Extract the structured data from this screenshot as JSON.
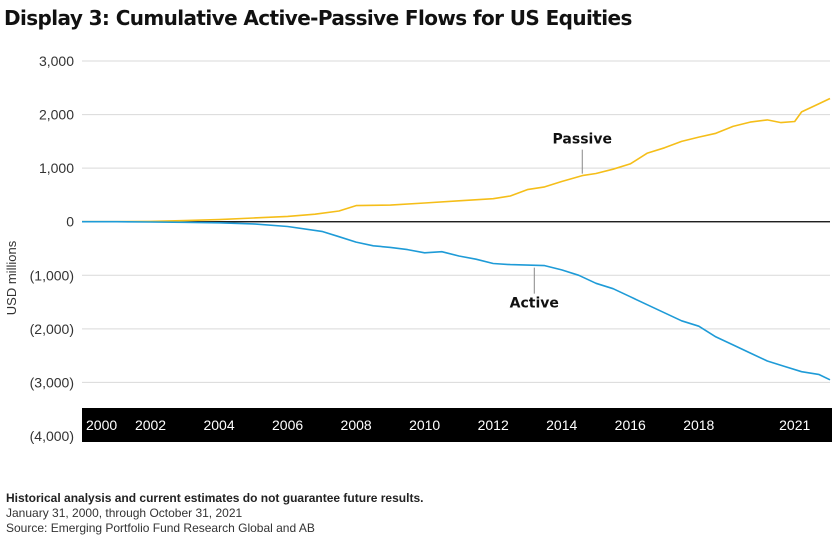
{
  "title": "Display 3: Cumulative Active-Passive Flows for US Equities",
  "footer": {
    "disclaimer": "Historical analysis and current estimates do not guarantee future results.",
    "period": "January 31, 2000, through October 31, 2021",
    "source": "Source: Emerging Portfolio Fund Research Global and AB"
  },
  "colors": {
    "passive": "#F5BE19",
    "active": "#1E9BD7",
    "axis_band": "#000000",
    "grid": "#d9d9d9"
  },
  "chart_data": {
    "type": "line",
    "title": "Display 3: Cumulative Active-Passive Flows for US Equities",
    "xlabel": "",
    "ylabel": "USD millions",
    "xlim": [
      2000,
      2021.83
    ],
    "ylim": [
      -4000,
      3000
    ],
    "yticks": [
      3000,
      2000,
      1000,
      0,
      -1000,
      -2000,
      -3000,
      -4000
    ],
    "ytick_labels": [
      "3,000",
      "2,000",
      "1,000",
      "0",
      "(1,000)",
      "(2,000)",
      "(3,000)",
      "(4,000)"
    ],
    "xtick_labels": [
      "2000",
      "2002",
      "2004",
      "2006",
      "2008",
      "2010",
      "2012",
      "2014",
      "2016",
      "2018",
      "2021"
    ],
    "xticks": [
      2000,
      2002,
      2004,
      2006,
      2008,
      2010,
      2012,
      2014,
      2016,
      2018,
      2020.8
    ],
    "grid": true,
    "series": [
      {
        "name": "Passive",
        "x": [
          2000,
          2001,
          2002,
          2003,
          2004,
          2005,
          2006,
          2006.8,
          2007.5,
          2008,
          2009,
          2010,
          2011,
          2012,
          2012.5,
          2013,
          2013.5,
          2014,
          2014.6,
          2015,
          2015.5,
          2016,
          2016.5,
          2017,
          2017.5,
          2018,
          2018.5,
          2019,
          2019.5,
          2020,
          2020.4,
          2020.8,
          2021,
          2021.5,
          2021.83
        ],
        "values": [
          0,
          0,
          5,
          20,
          40,
          70,
          100,
          140,
          200,
          300,
          310,
          350,
          390,
          430,
          480,
          600,
          650,
          750,
          860,
          900,
          980,
          1080,
          1280,
          1380,
          1500,
          1580,
          1650,
          1780,
          1860,
          1900,
          1850,
          1870,
          2050,
          2200,
          2300
        ]
      },
      {
        "name": "Active",
        "x": [
          2000,
          2001,
          2002,
          2003,
          2004,
          2005,
          2006,
          2007,
          2007.5,
          2008,
          2008.5,
          2009,
          2009.5,
          2010,
          2010.5,
          2011,
          2011.5,
          2012,
          2012.5,
          2013,
          2013.5,
          2014,
          2014.5,
          2015,
          2015.5,
          2016,
          2016.5,
          2017,
          2017.5,
          2018,
          2018.5,
          2019,
          2019.5,
          2020,
          2020.5,
          2021,
          2021.5,
          2021.83
        ],
        "values": [
          0,
          0,
          -5,
          -10,
          -20,
          -40,
          -90,
          -180,
          -280,
          -380,
          -450,
          -480,
          -520,
          -580,
          -560,
          -640,
          -700,
          -780,
          -800,
          -810,
          -820,
          -900,
          -1000,
          -1150,
          -1250,
          -1400,
          -1550,
          -1700,
          -1850,
          -1950,
          -2150,
          -2300,
          -2450,
          -2600,
          -2700,
          -2800,
          -2850,
          -2950
        ]
      }
    ],
    "annotations": [
      {
        "text": "Passive",
        "series": "Passive",
        "x": 2014.6,
        "y": 860
      },
      {
        "text": "Active",
        "series": "Active",
        "x": 2013.2,
        "y": -820
      }
    ]
  }
}
